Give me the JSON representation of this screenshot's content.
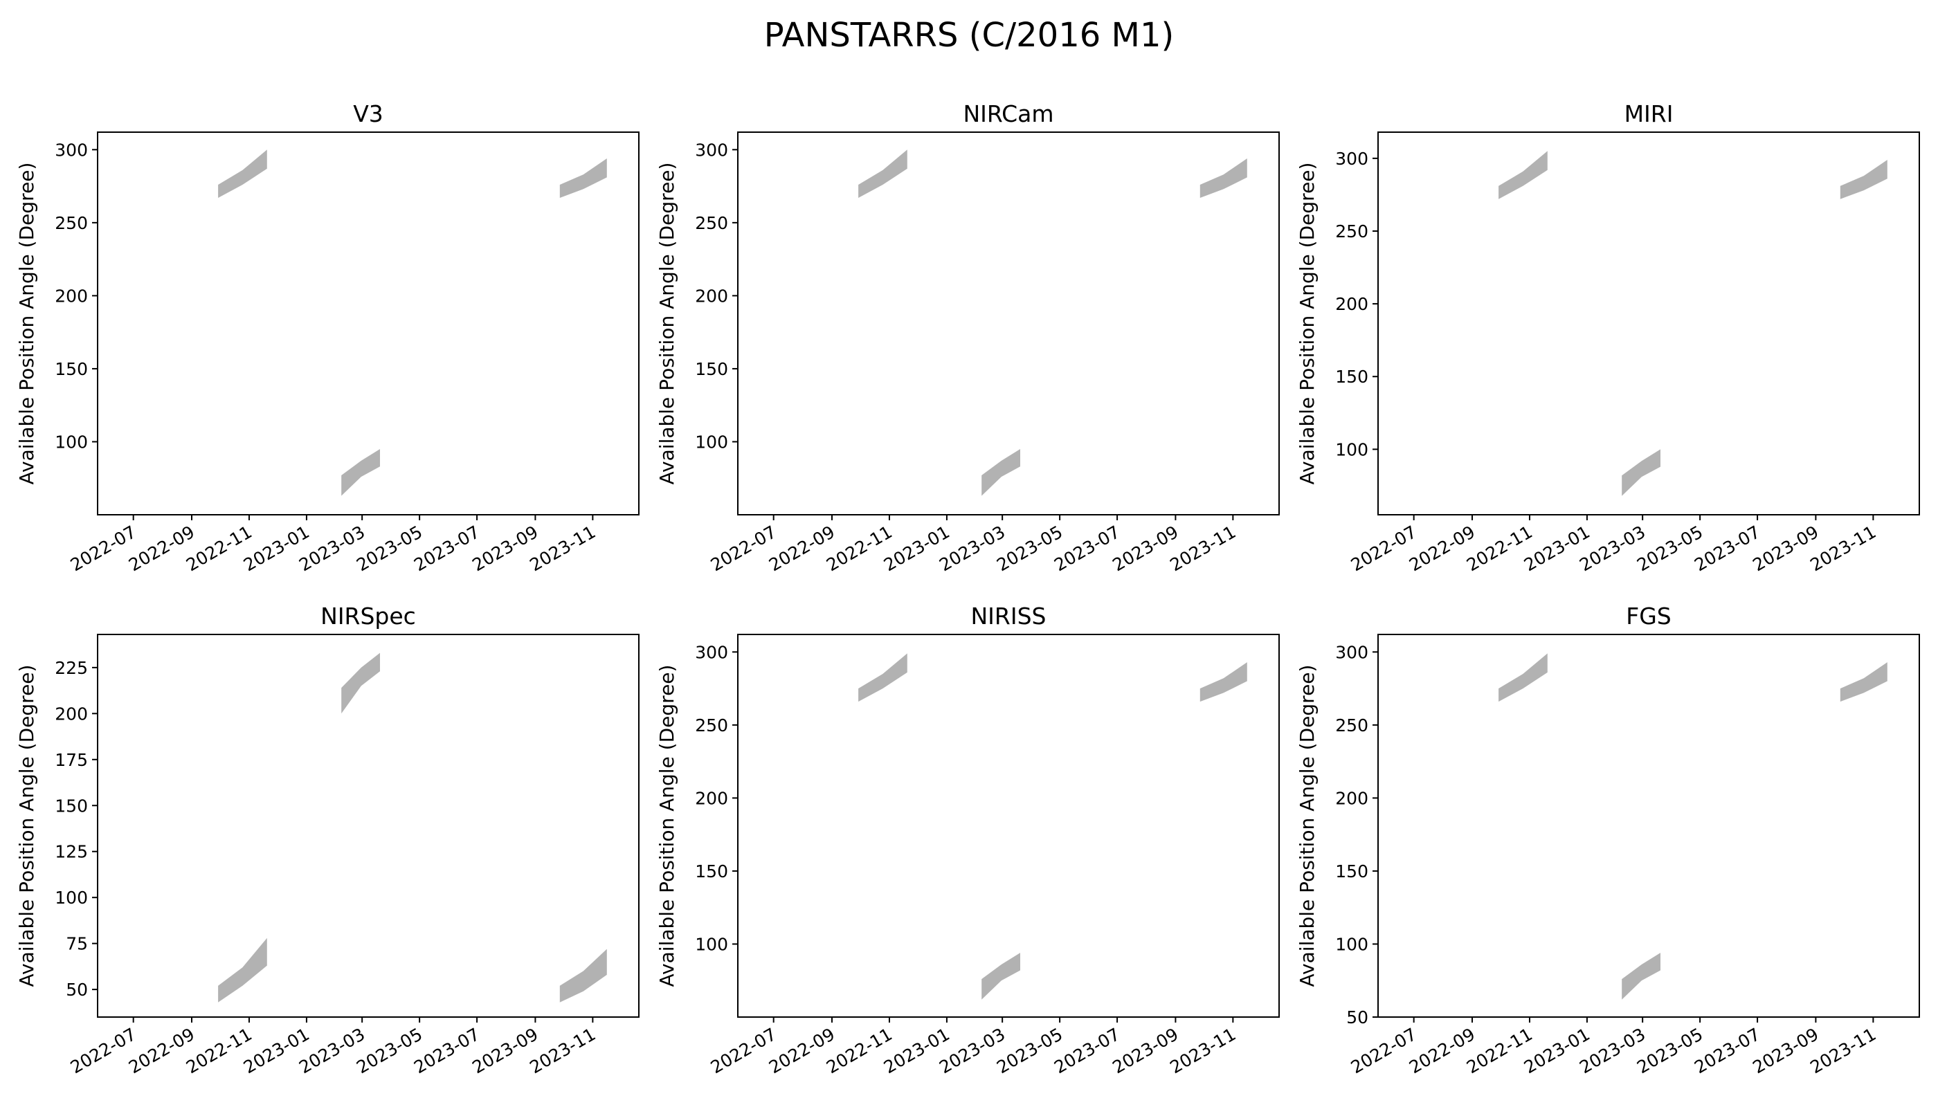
{
  "figure": {
    "title": "PANSTARRS (C/2016 M1)",
    "fill_color": "#b2b2b2"
  },
  "chart_data": [
    {
      "type": "area",
      "title": "V3",
      "xlabel": "",
      "ylabel": "Available Position Angle (Degree)",
      "x_type": "date",
      "xlim": [
        "2022-05-24",
        "2023-12-20"
      ],
      "x_ticks": [
        "2022-07",
        "2022-09",
        "2022-11",
        "2023-01",
        "2023-03",
        "2023-05",
        "2023-07",
        "2023-09",
        "2023-11"
      ],
      "ylim": [
        50,
        312
      ],
      "y_ticks": [
        100,
        150,
        200,
        250,
        300
      ],
      "grid": false,
      "series": [
        {
          "x": [
            "2022-09-29",
            "2022-10-25",
            "2022-11-20"
          ],
          "y_low": [
            267,
            276,
            287
          ],
          "y_high": [
            276,
            286,
            300
          ]
        },
        {
          "x": [
            "2023-02-07",
            "2023-02-28",
            "2023-03-20"
          ],
          "y_low": [
            63,
            76,
            83
          ],
          "y_high": [
            77,
            87,
            95
          ]
        },
        {
          "x": [
            "2023-09-27",
            "2023-10-22",
            "2023-11-16"
          ],
          "y_low": [
            267,
            273,
            281
          ],
          "y_high": [
            276,
            283,
            294
          ]
        }
      ]
    },
    {
      "type": "area",
      "title": "NIRCam",
      "xlabel": "",
      "ylabel": "Available Position Angle (Degree)",
      "x_type": "date",
      "xlim": [
        "2022-05-24",
        "2023-12-20"
      ],
      "x_ticks": [
        "2022-07",
        "2022-09",
        "2022-11",
        "2023-01",
        "2023-03",
        "2023-05",
        "2023-07",
        "2023-09",
        "2023-11"
      ],
      "ylim": [
        50,
        312
      ],
      "y_ticks": [
        100,
        150,
        200,
        250,
        300
      ],
      "grid": false,
      "series": [
        {
          "x": [
            "2022-09-29",
            "2022-10-25",
            "2022-11-20"
          ],
          "y_low": [
            267,
            276,
            287
          ],
          "y_high": [
            276,
            286,
            300
          ]
        },
        {
          "x": [
            "2023-02-07",
            "2023-02-28",
            "2023-03-20"
          ],
          "y_low": [
            63,
            76,
            83
          ],
          "y_high": [
            77,
            87,
            95
          ]
        },
        {
          "x": [
            "2023-09-27",
            "2023-10-22",
            "2023-11-16"
          ],
          "y_low": [
            267,
            273,
            281
          ],
          "y_high": [
            276,
            283,
            294
          ]
        }
      ]
    },
    {
      "type": "area",
      "title": "MIRI",
      "xlabel": "",
      "ylabel": "Available Position Angle (Degree)",
      "x_type": "date",
      "xlim": [
        "2022-05-24",
        "2023-12-20"
      ],
      "x_ticks": [
        "2022-07",
        "2022-09",
        "2022-11",
        "2023-01",
        "2023-03",
        "2023-05",
        "2023-07",
        "2023-09",
        "2023-11"
      ],
      "ylim": [
        55,
        318
      ],
      "y_ticks": [
        100,
        150,
        200,
        250,
        300
      ],
      "grid": false,
      "series": [
        {
          "x": [
            "2022-09-29",
            "2022-10-25",
            "2022-11-20"
          ],
          "y_low": [
            272,
            281,
            292
          ],
          "y_high": [
            281,
            291,
            305
          ]
        },
        {
          "x": [
            "2023-02-07",
            "2023-02-28",
            "2023-03-20"
          ],
          "y_low": [
            68,
            81,
            88
          ],
          "y_high": [
            82,
            92,
            100
          ]
        },
        {
          "x": [
            "2023-09-27",
            "2023-10-22",
            "2023-11-16"
          ],
          "y_low": [
            272,
            278,
            286
          ],
          "y_high": [
            281,
            288,
            299
          ]
        }
      ]
    },
    {
      "type": "area",
      "title": "NIRSpec",
      "xlabel": "",
      "ylabel": "Available Position Angle (Degree)",
      "x_type": "date",
      "xlim": [
        "2022-05-24",
        "2023-12-20"
      ],
      "x_ticks": [
        "2022-07",
        "2022-09",
        "2022-11",
        "2023-01",
        "2023-03",
        "2023-05",
        "2023-07",
        "2023-09",
        "2023-11"
      ],
      "ylim": [
        35,
        243
      ],
      "y_ticks": [
        50,
        75,
        100,
        125,
        150,
        175,
        200,
        225
      ],
      "grid": false,
      "series": [
        {
          "x": [
            "2022-09-29",
            "2022-10-25",
            "2022-11-20"
          ],
          "y_low": [
            43,
            52,
            63
          ],
          "y_high": [
            52,
            62,
            78
          ]
        },
        {
          "x": [
            "2023-02-07",
            "2023-02-28",
            "2023-03-20"
          ],
          "y_low": [
            200,
            215,
            223
          ],
          "y_high": [
            214,
            225,
            233
          ]
        },
        {
          "x": [
            "2023-09-27",
            "2023-10-22",
            "2023-11-16"
          ],
          "y_low": [
            43,
            49,
            58
          ],
          "y_high": [
            52,
            60,
            72
          ]
        }
      ]
    },
    {
      "type": "area",
      "title": "NIRISS",
      "xlabel": "",
      "ylabel": "Available Position Angle (Degree)",
      "x_type": "date",
      "xlim": [
        "2022-05-24",
        "2023-12-20"
      ],
      "x_ticks": [
        "2022-07",
        "2022-09",
        "2022-11",
        "2023-01",
        "2023-03",
        "2023-05",
        "2023-07",
        "2023-09",
        "2023-11"
      ],
      "ylim": [
        50,
        312
      ],
      "y_ticks": [
        100,
        150,
        200,
        250,
        300
      ],
      "grid": false,
      "series": [
        {
          "x": [
            "2022-09-29",
            "2022-10-25",
            "2022-11-20"
          ],
          "y_low": [
            266,
            275,
            286
          ],
          "y_high": [
            275,
            285,
            299
          ]
        },
        {
          "x": [
            "2023-02-07",
            "2023-02-28",
            "2023-03-20"
          ],
          "y_low": [
            62,
            75,
            82
          ],
          "y_high": [
            76,
            86,
            94
          ]
        },
        {
          "x": [
            "2023-09-27",
            "2023-10-22",
            "2023-11-16"
          ],
          "y_low": [
            266,
            272,
            280
          ],
          "y_high": [
            275,
            282,
            293
          ]
        }
      ]
    },
    {
      "type": "area",
      "title": "FGS",
      "xlabel": "",
      "ylabel": "Available Position Angle (Degree)",
      "x_type": "date",
      "xlim": [
        "2022-05-24",
        "2023-12-20"
      ],
      "x_ticks": [
        "2022-07",
        "2022-09",
        "2022-11",
        "2023-01",
        "2023-03",
        "2023-05",
        "2023-07",
        "2023-09",
        "2023-11"
      ],
      "ylim": [
        50,
        312
      ],
      "y_ticks": [
        50,
        100,
        150,
        200,
        250,
        300
      ],
      "grid": false,
      "series": [
        {
          "x": [
            "2022-09-29",
            "2022-10-25",
            "2022-11-20"
          ],
          "y_low": [
            266,
            275,
            286
          ],
          "y_high": [
            275,
            285,
            299
          ]
        },
        {
          "x": [
            "2023-02-07",
            "2023-02-28",
            "2023-03-20"
          ],
          "y_low": [
            62,
            75,
            82
          ],
          "y_high": [
            76,
            86,
            94
          ]
        },
        {
          "x": [
            "2023-09-27",
            "2023-10-22",
            "2023-11-16"
          ],
          "y_low": [
            266,
            272,
            280
          ],
          "y_high": [
            275,
            282,
            293
          ]
        }
      ]
    }
  ]
}
